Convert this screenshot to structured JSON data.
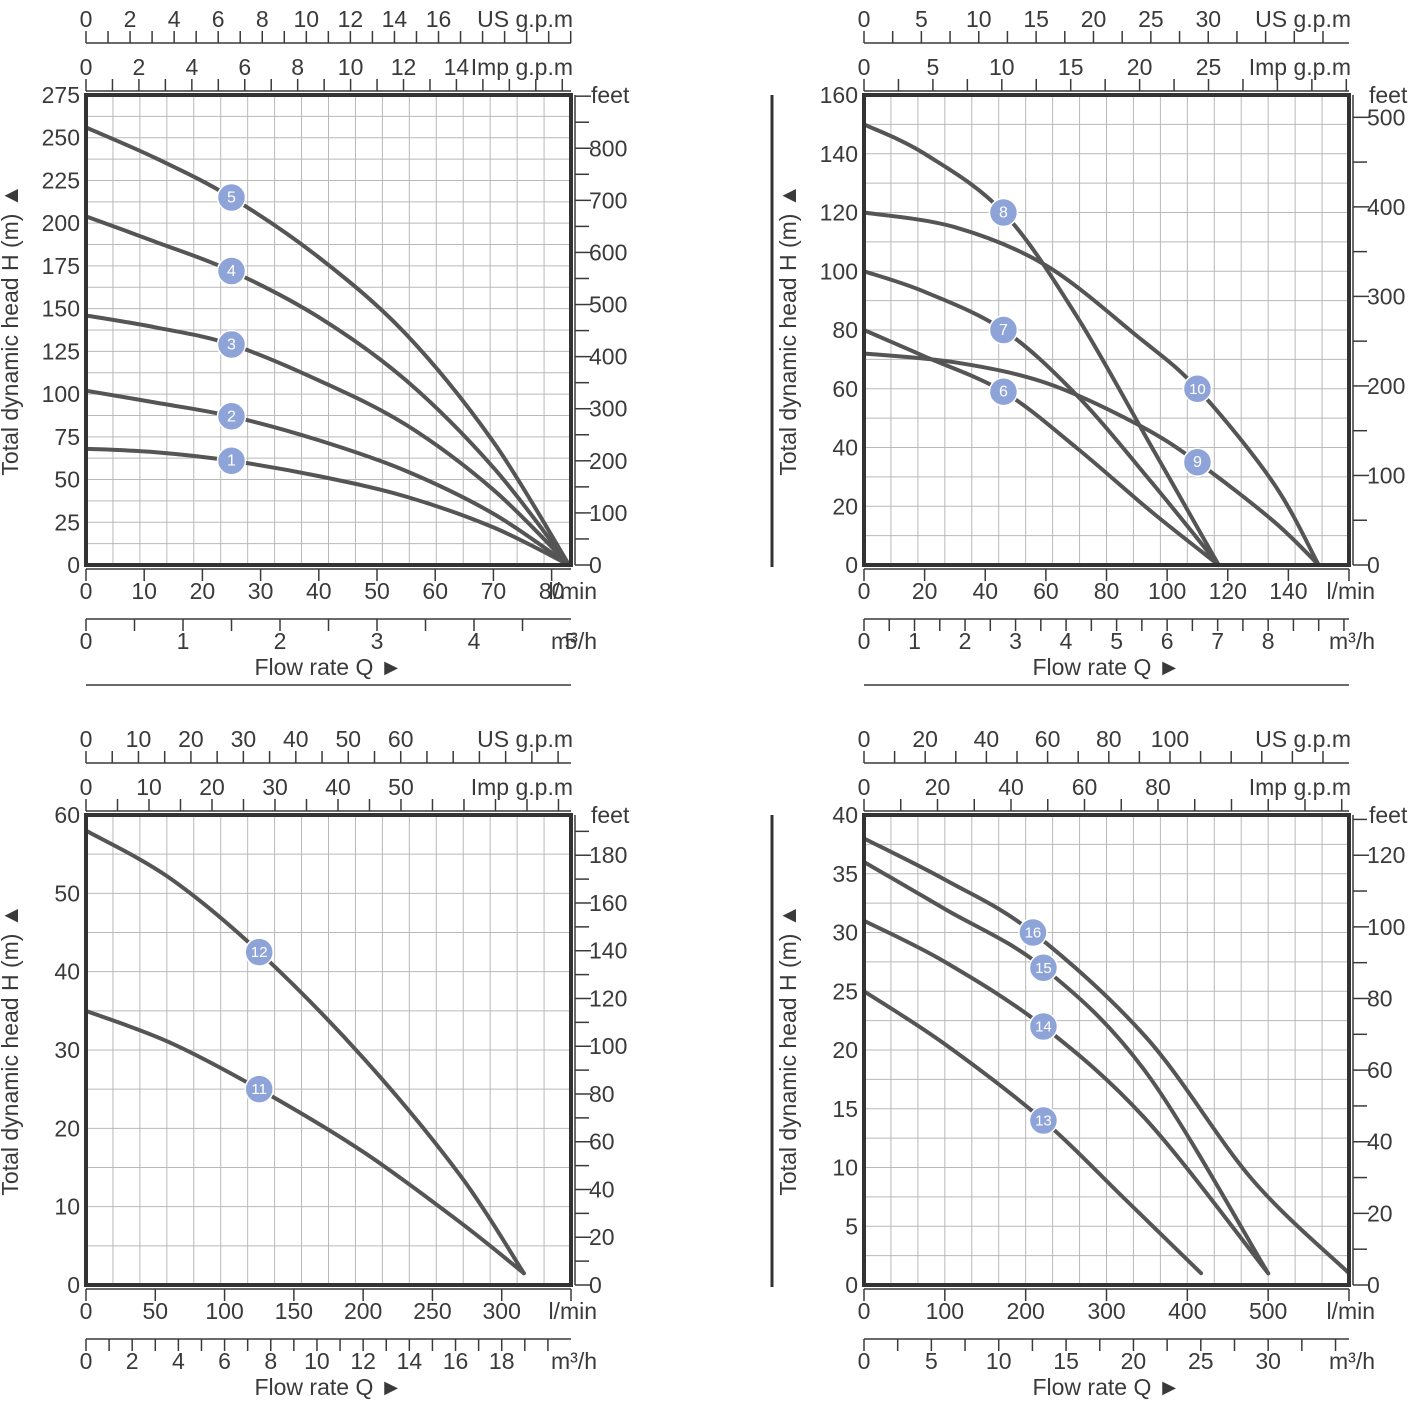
{
  "chart_data": [
    {
      "type": "line",
      "ylabel": "Total dynamic head H (m) ▲",
      "xlabel": "Flow rate Q ►",
      "ylim": [
        0,
        275
      ],
      "xlim": [
        0,
        83.33
      ],
      "right_axis": {
        "label": "feet",
        "ticks": [
          0,
          100,
          200,
          300,
          400,
          500,
          600,
          700,
          800
        ]
      },
      "top_axes": [
        {
          "label": "US g.p.m",
          "ticks": [
            0,
            2,
            4,
            6,
            8,
            10,
            12,
            14,
            16
          ]
        },
        {
          "label": "Imp g.p.m",
          "ticks": [
            0,
            2,
            4,
            6,
            8,
            10,
            12,
            14
          ]
        }
      ],
      "bottom_axes": [
        {
          "label": "l/min",
          "ticks": [
            0,
            10,
            20,
            30,
            40,
            50,
            60,
            70,
            80
          ]
        },
        {
          "label": "m³/h",
          "ticks": [
            0,
            1,
            2,
            3,
            4,
            5
          ]
        }
      ],
      "y_ticks": [
        0,
        25,
        50,
        75,
        100,
        125,
        150,
        175,
        200,
        225,
        250,
        275
      ],
      "series": [
        {
          "name": "1",
          "marker_x": 25,
          "points": [
            [
              0,
              68
            ],
            [
              12,
              66
            ],
            [
              25,
              61
            ],
            [
              40,
              52
            ],
            [
              55,
              40
            ],
            [
              70,
              22
            ],
            [
              83,
              0
            ]
          ]
        },
        {
          "name": "2",
          "marker_x": 25,
          "points": [
            [
              0,
              102
            ],
            [
              12,
              95
            ],
            [
              25,
              87
            ],
            [
              40,
              73
            ],
            [
              55,
              55
            ],
            [
              70,
              30
            ],
            [
              83,
              0
            ]
          ]
        },
        {
          "name": "3",
          "marker_x": 25,
          "points": [
            [
              0,
              146
            ],
            [
              12,
              139
            ],
            [
              25,
              129
            ],
            [
              40,
              108
            ],
            [
              55,
              82
            ],
            [
              70,
              44
            ],
            [
              83,
              0
            ]
          ]
        },
        {
          "name": "4",
          "marker_x": 25,
          "points": [
            [
              0,
              204
            ],
            [
              12,
              189
            ],
            [
              25,
              172
            ],
            [
              40,
              145
            ],
            [
              55,
              108
            ],
            [
              70,
              57
            ],
            [
              83,
              0
            ]
          ]
        },
        {
          "name": "5",
          "marker_x": 25,
          "points": [
            [
              0,
              256
            ],
            [
              12,
              238
            ],
            [
              25,
              215
            ],
            [
              40,
              180
            ],
            [
              55,
              135
            ],
            [
              70,
              72
            ],
            [
              83,
              0
            ]
          ]
        }
      ]
    },
    {
      "type": "line",
      "ylabel": "Total dynamic head H (m) ▲",
      "xlabel": "Flow rate Q ►",
      "ylim": [
        0,
        160
      ],
      "xlim": [
        0,
        160
      ],
      "right_axis": {
        "label": "feet",
        "ticks": [
          0,
          100,
          200,
          300,
          400,
          500
        ]
      },
      "top_axes": [
        {
          "label": "US g.p.m",
          "ticks": [
            0,
            5,
            10,
            15,
            20,
            25,
            30
          ]
        },
        {
          "label": "Imp g.p.m",
          "ticks": [
            0,
            5,
            10,
            15,
            20,
            25
          ]
        }
      ],
      "bottom_axes": [
        {
          "label": "l/min",
          "ticks": [
            0,
            20,
            40,
            60,
            80,
            100,
            120,
            140
          ]
        },
        {
          "label": "m³/h",
          "ticks": [
            0,
            1,
            2,
            3,
            4,
            5,
            6,
            7,
            8
          ]
        }
      ],
      "y_ticks": [
        0,
        20,
        40,
        60,
        80,
        100,
        120,
        140,
        160
      ],
      "series": [
        {
          "name": "6",
          "marker_x": 46,
          "points": [
            [
              0,
              80
            ],
            [
              20,
              71
            ],
            [
              46,
              59
            ],
            [
              70,
              40
            ],
            [
              95,
              18
            ],
            [
              117,
              0
            ]
          ]
        },
        {
          "name": "7",
          "marker_x": 46,
          "points": [
            [
              0,
              100
            ],
            [
              20,
              93
            ],
            [
              46,
              80
            ],
            [
              70,
              58
            ],
            [
              95,
              28
            ],
            [
              117,
              0
            ]
          ]
        },
        {
          "name": "8",
          "marker_x": 46,
          "points": [
            [
              0,
              150
            ],
            [
              20,
              140
            ],
            [
              46,
              120
            ],
            [
              70,
              85
            ],
            [
              95,
              40
            ],
            [
              117,
              0
            ]
          ]
        },
        {
          "name": "9",
          "marker_x": 110,
          "points": [
            [
              0,
              72
            ],
            [
              30,
              69
            ],
            [
              60,
              62
            ],
            [
              90,
              48
            ],
            [
              110,
              35
            ],
            [
              135,
              15
            ],
            [
              150,
              0
            ]
          ]
        },
        {
          "name": "10",
          "marker_x": 110,
          "points": [
            [
              0,
              120
            ],
            [
              30,
              115
            ],
            [
              60,
              102
            ],
            [
              90,
              78
            ],
            [
              110,
              60
            ],
            [
              135,
              28
            ],
            [
              150,
              0
            ]
          ]
        }
      ]
    },
    {
      "type": "line",
      "ylabel": "Total dynamic head H (m) ▲",
      "xlabel": "Flow rate Q ►",
      "ylim": [
        0,
        60
      ],
      "xlim": [
        0,
        350
      ],
      "right_axis": {
        "label": "feet",
        "ticks": [
          0,
          20,
          40,
          60,
          80,
          100,
          120,
          140,
          160,
          180
        ]
      },
      "top_axes": [
        {
          "label": "US g.p.m",
          "ticks": [
            0,
            10,
            20,
            30,
            40,
            50,
            60
          ]
        },
        {
          "label": "Imp g.p.m",
          "ticks": [
            0,
            10,
            20,
            30,
            40,
            50
          ]
        }
      ],
      "bottom_axes": [
        {
          "label": "l/min",
          "ticks": [
            0,
            50,
            100,
            150,
            200,
            250,
            300
          ]
        },
        {
          "label": "m³/h",
          "ticks": [
            0,
            2,
            4,
            6,
            8,
            10,
            12,
            14,
            16,
            18
          ]
        }
      ],
      "y_ticks": [
        0,
        10,
        20,
        30,
        40,
        50,
        60
      ],
      "series": [
        {
          "name": "11",
          "marker_x": 125,
          "points": [
            [
              0,
              35
            ],
            [
              60,
              31
            ],
            [
              125,
              25
            ],
            [
              200,
              17
            ],
            [
              270,
              8
            ],
            [
              316,
              1.5
            ]
          ]
        },
        {
          "name": "12",
          "marker_x": 125,
          "points": [
            [
              0,
              58
            ],
            [
              60,
              52
            ],
            [
              125,
              42.5
            ],
            [
              200,
              29
            ],
            [
              270,
              14
            ],
            [
              316,
              1.5
            ]
          ]
        }
      ]
    },
    {
      "type": "line",
      "ylabel": "Total dynamic head H (m) ▲",
      "xlabel": "Flow rate Q ►",
      "ylim": [
        0,
        40
      ],
      "xlim": [
        0,
        600
      ],
      "right_axis": {
        "label": "feet",
        "ticks": [
          0,
          20,
          40,
          60,
          80,
          100,
          120
        ]
      },
      "top_axes": [
        {
          "label": "US g.p.m",
          "ticks": [
            0,
            20,
            40,
            60,
            80,
            100
          ]
        },
        {
          "label": "Imp g.p.m",
          "ticks": [
            0,
            20,
            40,
            60,
            80
          ]
        }
      ],
      "bottom_axes": [
        {
          "label": "l/min",
          "ticks": [
            0,
            100,
            200,
            300,
            400,
            500
          ]
        },
        {
          "label": "m³/h",
          "ticks": [
            0,
            5,
            10,
            15,
            20,
            25,
            30
          ]
        }
      ],
      "y_ticks": [
        0,
        5,
        10,
        15,
        20,
        25,
        30,
        35,
        40
      ],
      "series": [
        {
          "name": "13",
          "marker_x": 222,
          "points": [
            [
              0,
              25
            ],
            [
              100,
              20.5
            ],
            [
              222,
              14
            ],
            [
              320,
              7.5
            ],
            [
              417,
              1
            ]
          ]
        },
        {
          "name": "14",
          "marker_x": 222,
          "points": [
            [
              0,
              31
            ],
            [
              100,
              27.5
            ],
            [
              222,
              22
            ],
            [
              350,
              14
            ],
            [
              500,
              1
            ]
          ]
        },
        {
          "name": "15",
          "marker_x": 222,
          "points": [
            [
              0,
              36
            ],
            [
              100,
              32
            ],
            [
              222,
              27
            ],
            [
              350,
              18
            ],
            [
              500,
              1
            ]
          ]
        },
        {
          "name": "16",
          "marker_x": 209,
          "points": [
            [
              0,
              38
            ],
            [
              100,
              34.5
            ],
            [
              209,
              30
            ],
            [
              350,
              21
            ],
            [
              480,
              9
            ],
            [
              600,
              1
            ]
          ]
        }
      ]
    }
  ]
}
